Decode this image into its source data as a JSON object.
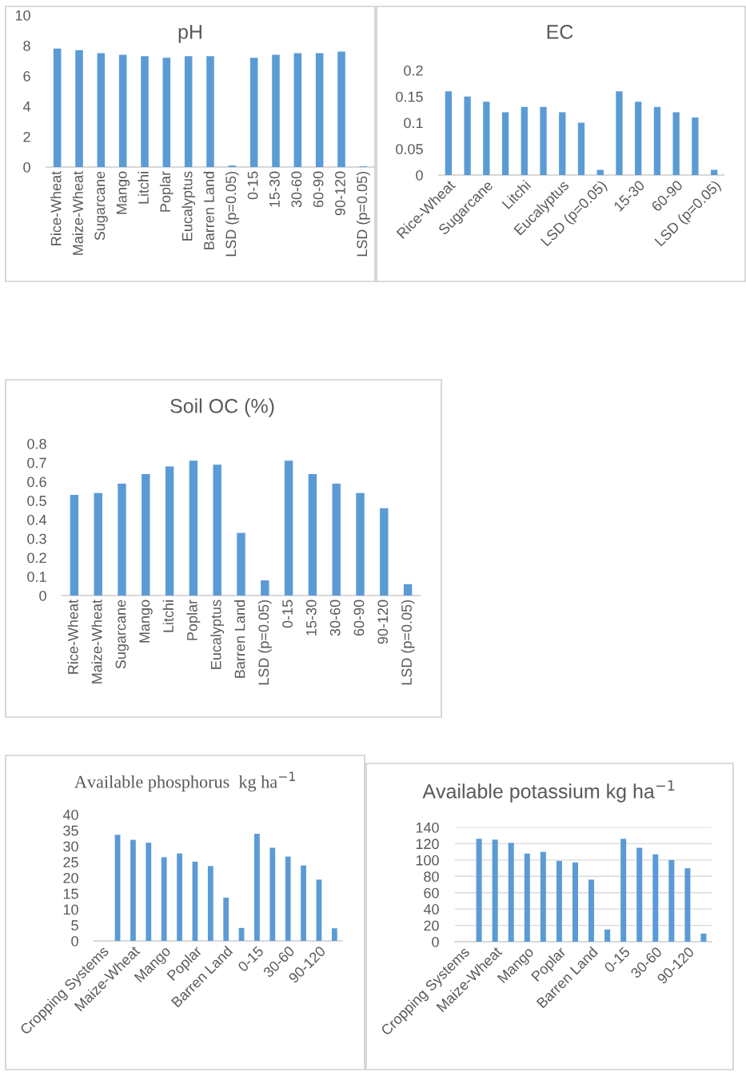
{
  "chart_data": [
    {
      "type": "bar",
      "title": "pH",
      "categories": [
        "Rice-Wheat",
        "Maize-Wheat",
        "Sugarcane",
        "Mango",
        "Litchi",
        "Poplar",
        "Eucalyptus",
        "Barren Land",
        "LSD (p=0.05)",
        "0-15",
        "15-30",
        "30-60",
        "60-90",
        "90-120",
        "LSD (p=0.05)"
      ],
      "values": [
        7.8,
        7.7,
        7.5,
        7.4,
        7.3,
        7.2,
        7.3,
        7.3,
        0.1,
        7.2,
        7.4,
        7.5,
        7.5,
        7.6,
        0.05
      ],
      "color": "#5b9bd5",
      "ylim": [
        0,
        10
      ],
      "yticks": [
        0,
        2,
        4,
        6,
        8,
        10
      ]
    },
    {
      "type": "bar",
      "title": "EC",
      "categories": [
        "Rice-Wheat",
        null,
        "Sugarcane",
        null,
        "Litchi",
        null,
        "Eucalyptus",
        null,
        "LSD (p=0.05)",
        null,
        "15-30",
        null,
        "60-90",
        null,
        "LSD (p=0.05)"
      ],
      "values": [
        0.16,
        0.15,
        0.14,
        0.12,
        0.13,
        0.13,
        0.12,
        0.1,
        0.01,
        0.16,
        0.14,
        0.13,
        0.12,
        0.11,
        0.01
      ],
      "color": "#5b9bd5",
      "ylim": [
        0,
        0.2
      ],
      "yticks": [
        0,
        0.05,
        0.1,
        0.15,
        0.2
      ]
    },
    {
      "type": "bar",
      "title": "Soil OC (%)",
      "categories": [
        "Rice-Wheat",
        "Maize-Wheat",
        "Sugarcane",
        "Mango",
        "Litchi",
        "Poplar",
        "Eucalyptus",
        "Barren Land",
        "LSD (p=0.05)",
        "0-15",
        "15-30",
        "30-60",
        "60-90",
        "90-120",
        "LSD (p=0.05)"
      ],
      "values": [
        0.53,
        0.54,
        0.59,
        0.64,
        0.68,
        0.71,
        0.69,
        0.33,
        0.08,
        0.71,
        0.64,
        0.59,
        0.54,
        0.46,
        0.06
      ],
      "color": "#5b9bd5",
      "ylim": [
        0,
        0.8
      ],
      "yticks": [
        0,
        0.1,
        0.2,
        0.3,
        0.4,
        0.5,
        0.6,
        0.7,
        0.8
      ]
    },
    {
      "type": "bar",
      "title": "Available phosphorus  kg ha$^{−1}$",
      "categories": [
        "Cropping Systems",
        null,
        "Maize-Wheat",
        null,
        "Mango",
        null,
        "Poplar",
        null,
        "Barren Land",
        null,
        "0-15",
        null,
        "30-60",
        null,
        "90-120",
        null
      ],
      "values": [
        null,
        33.6,
        32.0,
        31.1,
        26.5,
        27.7,
        25.1,
        23.7,
        13.7,
        4.1,
        33.9,
        29.5,
        26.7,
        23.9,
        19.4,
        4.0
      ],
      "color": "#5b9bd5",
      "ylim": [
        0,
        40
      ],
      "yticks": [
        0,
        5,
        10,
        15,
        20,
        25,
        30,
        35,
        40
      ]
    },
    {
      "type": "bar",
      "title": "Available potassium kg ha$^{−1}$",
      "categories": [
        "Cropping Systems",
        null,
        "Maize-Wheat",
        null,
        "Mango",
        null,
        "Poplar",
        null,
        "Barren Land",
        null,
        "0-15",
        null,
        "30-60",
        null,
        "90-120",
        null
      ],
      "values": [
        null,
        126,
        125,
        121,
        108,
        110,
        99,
        97,
        76,
        15,
        126,
        115,
        107,
        100,
        90,
        10
      ],
      "color": "#5b9bd5",
      "ylim": [
        0,
        140
      ],
      "yticks": [
        0,
        20,
        40,
        60,
        80,
        100,
        120,
        140
      ],
      "grid": "y"
    }
  ]
}
